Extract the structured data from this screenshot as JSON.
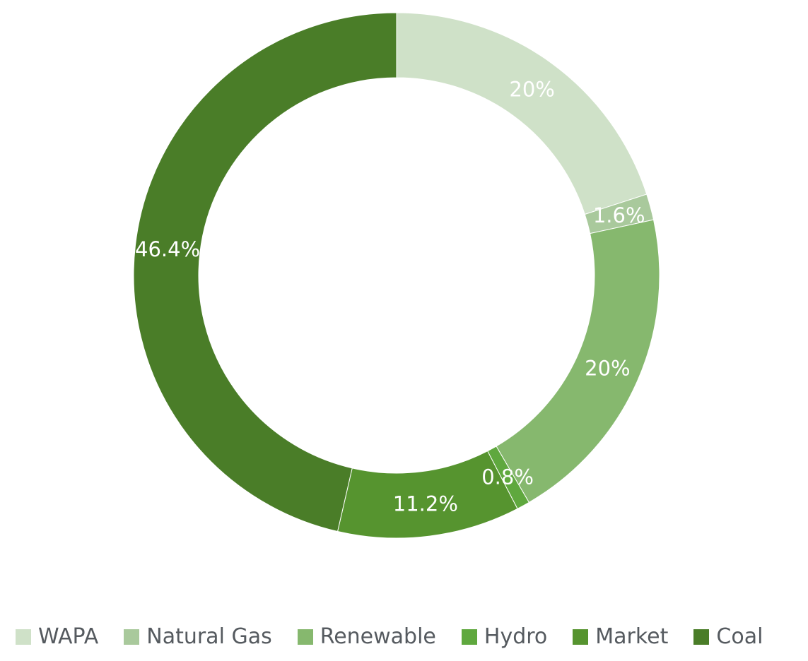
{
  "chart_data": {
    "type": "pie",
    "subtype": "donut",
    "title": "",
    "legend_position": "bottom",
    "slices": [
      {
        "name": "WAPA",
        "value": 20,
        "label": "20%",
        "color": "#cfe1c8"
      },
      {
        "name": "Natural Gas",
        "value": 1.6,
        "label": "1.6%",
        "color": "#a9c99c"
      },
      {
        "name": "Renewable",
        "value": 20,
        "label": "20%",
        "color": "#86b86e"
      },
      {
        "name": "Hydro",
        "value": 0.8,
        "label": "0.8%",
        "color": "#5fa83e"
      },
      {
        "name": "Market",
        "value": 11.2,
        "label": "11.2%",
        "color": "#56942f"
      },
      {
        "name": "Coal",
        "value": 46.4,
        "label": "46.4%",
        "color": "#4a7d28"
      }
    ]
  },
  "legend": {
    "items": [
      {
        "label": "WAPA",
        "color": "#cfe1c8"
      },
      {
        "label": "Natural Gas",
        "color": "#a9c99c"
      },
      {
        "label": "Renewable",
        "color": "#86b86e"
      },
      {
        "label": "Hydro",
        "color": "#5fa83e"
      },
      {
        "label": "Market",
        "color": "#56942f"
      },
      {
        "label": "Coal",
        "color": "#4a7d28"
      }
    ]
  }
}
